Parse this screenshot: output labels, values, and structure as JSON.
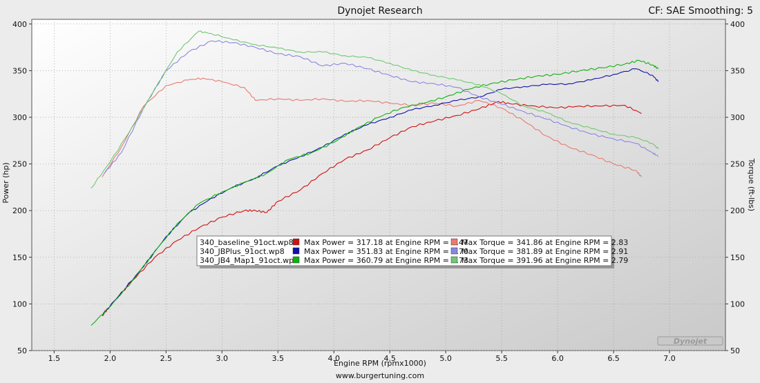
{
  "header": {
    "title": "Dynojet Research",
    "settings": "CF: SAE Smoothing: 5"
  },
  "footer": {
    "url": "www.burgertuning.com"
  },
  "watermark": "Dynojet",
  "colors": {
    "baseline_power": "#d01010",
    "baseline_torque": "#e87a70",
    "jbplus_power": "#1010a8",
    "jbplus_torque": "#8a86e0",
    "jb4_power": "#10b010",
    "jb4_torque": "#70c870"
  },
  "legend": [
    {
      "file": "340_baseline_91oct.wp8",
      "power": "Max Power = 317.18 at Engine RPM = 5.47",
      "torque": "Max Torque = 341.86 at Engine RPM = 2.83",
      "power_color": "#d01010",
      "torque_color": "#e87a70"
    },
    {
      "file": "340_JBPlus_91oct.wp8",
      "power": "Max Power = 351.83 at Engine RPM = 6.70",
      "torque": "Max Torque = 381.89 at Engine RPM = 2.91",
      "power_color": "#1010a8",
      "torque_color": "#8a86e0"
    },
    {
      "file": "340_JB4_Map1_91oct.wp8",
      "power": "Max Power = 360.79 at Engine RPM = 6.73",
      "torque": "Max Torque = 391.96 at Engine RPM = 2.79",
      "power_color": "#10b010",
      "torque_color": "#70c870"
    }
  ],
  "chart_data": {
    "type": "line",
    "xlabel": "Engine RPM (rpmx1000)",
    "ylabel": "Power (hp)",
    "y2label": "Torque (ft-lbs)",
    "xlim": [
      1.3,
      7.5
    ],
    "ylim": [
      50,
      405
    ],
    "x_ticks": [
      "1.5",
      "2.0",
      "2.5",
      "3.0",
      "3.5",
      "4.0",
      "4.5",
      "5.0",
      "5.5",
      "6.0",
      "6.5",
      "7.0"
    ],
    "y_ticks": [
      "50",
      "100",
      "150",
      "200",
      "250",
      "300",
      "350",
      "400"
    ],
    "y2_ticks": [
      "50",
      "100",
      "150",
      "200",
      "250",
      "300",
      "350",
      "400"
    ],
    "grid": true,
    "series": [
      {
        "name": "340_baseline_91oct.wp8",
        "kind": "power",
        "color": "#d01010",
        "points": [
          [
            1.93,
            87
          ],
          [
            2.0,
            98
          ],
          [
            2.2,
            125
          ],
          [
            2.4,
            150
          ],
          [
            2.6,
            168
          ],
          [
            2.8,
            182
          ],
          [
            3.0,
            193
          ],
          [
            3.2,
            200
          ],
          [
            3.3,
            200
          ],
          [
            3.4,
            198
          ],
          [
            3.5,
            210
          ],
          [
            3.7,
            222
          ],
          [
            3.9,
            240
          ],
          [
            4.1,
            255
          ],
          [
            4.3,
            265
          ],
          [
            4.5,
            278
          ],
          [
            4.7,
            290
          ],
          [
            4.9,
            296
          ],
          [
            5.1,
            302
          ],
          [
            5.3,
            309
          ],
          [
            5.47,
            317
          ],
          [
            5.6,
            314
          ],
          [
            5.8,
            312
          ],
          [
            6.0,
            310
          ],
          [
            6.2,
            312
          ],
          [
            6.4,
            312
          ],
          [
            6.6,
            313
          ],
          [
            6.75,
            304
          ]
        ]
      },
      {
        "name": "340_baseline_91oct.wp8",
        "kind": "torque",
        "color": "#e87a70",
        "points": [
          [
            1.93,
            236
          ],
          [
            2.1,
            268
          ],
          [
            2.3,
            312
          ],
          [
            2.5,
            334
          ],
          [
            2.7,
            340
          ],
          [
            2.83,
            342
          ],
          [
            3.0,
            338
          ],
          [
            3.2,
            332
          ],
          [
            3.3,
            318
          ],
          [
            3.5,
            320
          ],
          [
            3.7,
            318
          ],
          [
            3.9,
            320
          ],
          [
            4.1,
            317
          ],
          [
            4.3,
            318
          ],
          [
            4.5,
            315
          ],
          [
            4.7,
            313
          ],
          [
            4.9,
            315
          ],
          [
            5.1,
            312
          ],
          [
            5.3,
            318
          ],
          [
            5.5,
            310
          ],
          [
            5.7,
            296
          ],
          [
            5.9,
            280
          ],
          [
            6.1,
            268
          ],
          [
            6.3,
            260
          ],
          [
            6.5,
            250
          ],
          [
            6.7,
            243
          ],
          [
            6.75,
            236
          ]
        ]
      },
      {
        "name": "340_JBPlus_91oct.wp8",
        "kind": "power",
        "color": "#1010a8",
        "points": [
          [
            1.93,
            88
          ],
          [
            2.1,
            112
          ],
          [
            2.3,
            140
          ],
          [
            2.5,
            172
          ],
          [
            2.7,
            197
          ],
          [
            2.9,
            213
          ],
          [
            3.1,
            225
          ],
          [
            3.3,
            235
          ],
          [
            3.5,
            248
          ],
          [
            3.7,
            258
          ],
          [
            3.9,
            268
          ],
          [
            4.1,
            282
          ],
          [
            4.3,
            292
          ],
          [
            4.5,
            300
          ],
          [
            4.7,
            308
          ],
          [
            4.9,
            313
          ],
          [
            5.1,
            318
          ],
          [
            5.3,
            322
          ],
          [
            5.5,
            330
          ],
          [
            5.7,
            333
          ],
          [
            5.9,
            335
          ],
          [
            6.1,
            336
          ],
          [
            6.3,
            340
          ],
          [
            6.5,
            346
          ],
          [
            6.7,
            352
          ],
          [
            6.85,
            345
          ],
          [
            6.9,
            338
          ]
        ]
      },
      {
        "name": "340_JBPlus_91oct.wp8",
        "kind": "torque",
        "color": "#8a86e0",
        "points": [
          [
            1.95,
            240
          ],
          [
            2.1,
            262
          ],
          [
            2.3,
            310
          ],
          [
            2.5,
            350
          ],
          [
            2.7,
            370
          ],
          [
            2.91,
            382
          ],
          [
            3.1,
            380
          ],
          [
            3.3,
            375
          ],
          [
            3.5,
            368
          ],
          [
            3.7,
            365
          ],
          [
            3.9,
            355
          ],
          [
            4.1,
            358
          ],
          [
            4.3,
            352
          ],
          [
            4.5,
            345
          ],
          [
            4.7,
            338
          ],
          [
            4.9,
            336
          ],
          [
            5.1,
            332
          ],
          [
            5.3,
            322
          ],
          [
            5.5,
            314
          ],
          [
            5.7,
            306
          ],
          [
            5.9,
            298
          ],
          [
            6.1,
            290
          ],
          [
            6.3,
            282
          ],
          [
            6.5,
            277
          ],
          [
            6.7,
            272
          ],
          [
            6.85,
            262
          ],
          [
            6.9,
            258
          ]
        ]
      },
      {
        "name": "340_JB4_Map1_91oct.wp8",
        "kind": "power",
        "color": "#10b010",
        "points": [
          [
            1.83,
            77
          ],
          [
            2.0,
            97
          ],
          [
            2.2,
            125
          ],
          [
            2.4,
            156
          ],
          [
            2.6,
            186
          ],
          [
            2.8,
            208
          ],
          [
            3.0,
            220
          ],
          [
            3.2,
            230
          ],
          [
            3.4,
            240
          ],
          [
            3.6,
            255
          ],
          [
            3.8,
            262
          ],
          [
            4.0,
            273
          ],
          [
            4.2,
            288
          ],
          [
            4.4,
            300
          ],
          [
            4.6,
            310
          ],
          [
            4.8,
            315
          ],
          [
            5.0,
            322
          ],
          [
            5.2,
            330
          ],
          [
            5.4,
            336
          ],
          [
            5.6,
            340
          ],
          [
            5.8,
            344
          ],
          [
            6.0,
            346
          ],
          [
            6.2,
            350
          ],
          [
            6.4,
            353
          ],
          [
            6.6,
            357
          ],
          [
            6.73,
            361
          ],
          [
            6.85,
            356
          ],
          [
            6.9,
            352
          ]
        ]
      },
      {
        "name": "340_JB4_Map1_91oct.wp8",
        "kind": "torque",
        "color": "#70c870",
        "points": [
          [
            1.83,
            224
          ],
          [
            2.0,
            252
          ],
          [
            2.2,
            290
          ],
          [
            2.4,
            330
          ],
          [
            2.6,
            370
          ],
          [
            2.79,
            392
          ],
          [
            2.9,
            390
          ],
          [
            3.1,
            383
          ],
          [
            3.3,
            378
          ],
          [
            3.5,
            374
          ],
          [
            3.7,
            370
          ],
          [
            3.9,
            370
          ],
          [
            4.1,
            366
          ],
          [
            4.3,
            364
          ],
          [
            4.5,
            358
          ],
          [
            4.7,
            350
          ],
          [
            4.9,
            345
          ],
          [
            5.1,
            340
          ],
          [
            5.3,
            335
          ],
          [
            5.5,
            325
          ],
          [
            5.7,
            312
          ],
          [
            5.9,
            305
          ],
          [
            6.1,
            295
          ],
          [
            6.3,
            288
          ],
          [
            6.5,
            282
          ],
          [
            6.7,
            278
          ],
          [
            6.85,
            272
          ],
          [
            6.9,
            266
          ]
        ]
      }
    ]
  }
}
